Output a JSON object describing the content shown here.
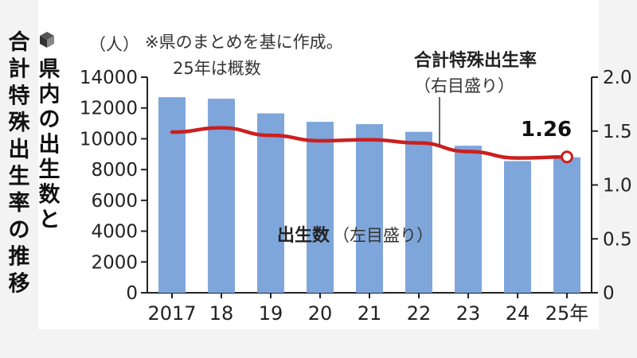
{
  "title_lines": [
    "県内の出生数と",
    "合計特殊出生率の推移"
  ],
  "note_lines": [
    "※県のまとめを基に作成。",
    "25年は概数"
  ],
  "colors": {
    "bars": "#7fa6db",
    "line": "#cc1f1f",
    "marker_fill": "#ffffff"
  },
  "chart_data": {
    "type": "bar+line",
    "categories": [
      "2017",
      "18",
      "19",
      "20",
      "21",
      "22",
      "23",
      "24",
      "25年"
    ],
    "left_axis": {
      "unit_label": "（人）",
      "min": 0,
      "max": 14000,
      "ticks": [
        0,
        2000,
        4000,
        6000,
        8000,
        10000,
        12000,
        14000
      ]
    },
    "right_axis": {
      "min": 0,
      "max": 2.0,
      "tick_labels": [
        "0",
        "0.5",
        "1.0",
        "1.5",
        "2.0"
      ]
    },
    "series": [
      {
        "name": "出生数",
        "axis_note": "（左目盛り）",
        "type": "bar",
        "values": [
          12700,
          12600,
          11650,
          11100,
          10950,
          10450,
          9550,
          8550,
          8800
        ]
      },
      {
        "name": "合計特殊出生率",
        "axis_note": "（右目盛り）",
        "type": "line",
        "values": [
          1.49,
          1.53,
          1.46,
          1.41,
          1.42,
          1.39,
          1.31,
          1.25,
          1.26
        ]
      }
    ],
    "annotation": {
      "text": "1.26",
      "category_index": 8
    },
    "grid": false,
    "legend": "inline"
  }
}
